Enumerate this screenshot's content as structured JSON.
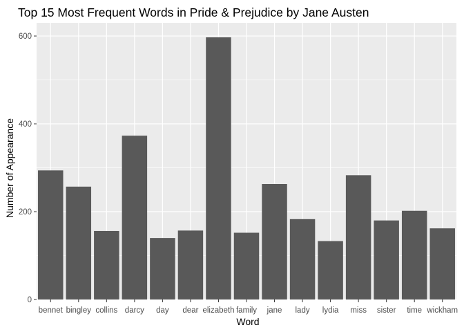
{
  "chart_data": {
    "type": "bar",
    "title": "Top 15 Most Frequent Words in Pride & Prejudice by Jane Austen",
    "xlabel": "Word",
    "ylabel": "Number of Appearance",
    "categories": [
      "bennet",
      "bingley",
      "collins",
      "darcy",
      "day",
      "dear",
      "elizabeth",
      "family",
      "jane",
      "lady",
      "lydia",
      "miss",
      "sister",
      "time",
      "wickham"
    ],
    "values": [
      294,
      257,
      156,
      373,
      140,
      157,
      597,
      152,
      263,
      183,
      133,
      283,
      180,
      202,
      162
    ],
    "ylim": [
      0,
      630
    ],
    "yticks": [
      0,
      200,
      400,
      600
    ],
    "grid": true,
    "colors": {
      "bar": "#595959",
      "panel": "#ebebeb",
      "grid": "#ffffff",
      "text": "#4d4d4d"
    }
  }
}
